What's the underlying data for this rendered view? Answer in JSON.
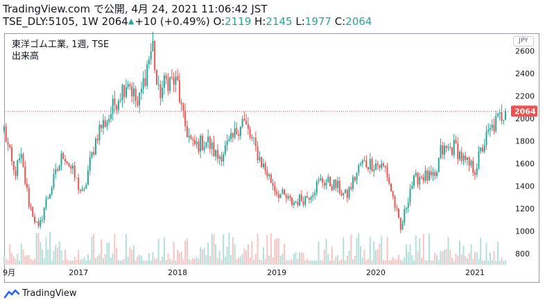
{
  "header": {
    "line1": "TradingView.com で公開, 4月 24, 2021 11:06:42 JST",
    "symbol": "TSE_DLY:5105, 1W",
    "last": "2064",
    "change": "+10 (+0.49%)",
    "o_label": "O:",
    "o_value": "2119",
    "h_label": "H:",
    "h_value": "2145",
    "l_label": "L:",
    "l_value": "1977",
    "c_label": "C:",
    "c_value": "2064"
  },
  "legend": {
    "title": "東洋ゴム工業, 1週, TSE",
    "volume_label": "出来高"
  },
  "currency": "JPY",
  "footer": {
    "brand": "TradingView"
  },
  "colors": {
    "up": "#26a69a",
    "down": "#ef5350",
    "price_line": "#ef5350",
    "axis_text": "#131722",
    "vol_up": "#b2dfdb",
    "vol_down": "#f8c4c2"
  },
  "chart_data": {
    "type": "candlestick",
    "interval": "1W",
    "ylim": [
      700,
      2750
    ],
    "y_ticks": [
      800,
      1000,
      1200,
      1400,
      1600,
      1800,
      2000,
      2200,
      2400,
      2600
    ],
    "x_start": 2016.25,
    "x_end": 2021.35,
    "x_ticks": [
      {
        "x": 2016.3,
        "label": "9月"
      },
      {
        "x": 2017.0,
        "label": "2017"
      },
      {
        "x": 2018.0,
        "label": "2018"
      },
      {
        "x": 2019.0,
        "label": "2019"
      },
      {
        "x": 2020.0,
        "label": "2020"
      },
      {
        "x": 2021.0,
        "label": "2021"
      }
    ],
    "last_price": 2064,
    "anchors": [
      [
        2016.25,
        1900
      ],
      [
        2016.35,
        1500
      ],
      [
        2016.42,
        1650
      ],
      [
        2016.5,
        1250
      ],
      [
        2016.6,
        1000
      ],
      [
        2016.65,
        1200
      ],
      [
        2016.75,
        1450
      ],
      [
        2016.85,
        1700
      ],
      [
        2016.95,
        1500
      ],
      [
        2017.05,
        1300
      ],
      [
        2017.1,
        1550
      ],
      [
        2017.2,
        1900
      ],
      [
        2017.3,
        2000
      ],
      [
        2017.4,
        2200
      ],
      [
        2017.5,
        2350
      ],
      [
        2017.6,
        2100
      ],
      [
        2017.7,
        2500
      ],
      [
        2017.75,
        2650
      ],
      [
        2017.8,
        2200
      ],
      [
        2017.9,
        2350
      ],
      [
        2018.0,
        2300
      ],
      [
        2018.05,
        2000
      ],
      [
        2018.15,
        1750
      ],
      [
        2018.3,
        1800
      ],
      [
        2018.4,
        1650
      ],
      [
        2018.55,
        1800
      ],
      [
        2018.65,
        2000
      ],
      [
        2018.75,
        1800
      ],
      [
        2018.85,
        1600
      ],
      [
        2019.0,
        1350
      ],
      [
        2019.15,
        1250
      ],
      [
        2019.3,
        1300
      ],
      [
        2019.45,
        1450
      ],
      [
        2019.6,
        1400
      ],
      [
        2019.7,
        1300
      ],
      [
        2019.85,
        1600
      ],
      [
        2020.0,
        1600
      ],
      [
        2020.1,
        1550
      ],
      [
        2020.2,
        1200
      ],
      [
        2020.25,
        1000
      ],
      [
        2020.35,
        1400
      ],
      [
        2020.45,
        1500
      ],
      [
        2020.6,
        1450
      ],
      [
        2020.65,
        1700
      ],
      [
        2020.8,
        1750
      ],
      [
        2020.9,
        1600
      ],
      [
        2021.0,
        1550
      ],
      [
        2021.1,
        1800
      ],
      [
        2021.2,
        1950
      ],
      [
        2021.3,
        2064
      ]
    ]
  }
}
